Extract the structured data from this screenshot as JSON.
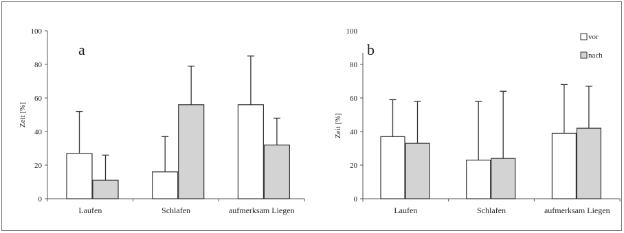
{
  "chart_data": [
    {
      "type": "bar",
      "panel_label": "a",
      "categories": [
        "Laufen",
        "Schlafen",
        "aufmerksam Liegen"
      ],
      "series": [
        {
          "name": "vor",
          "values": [
            27,
            16,
            56
          ],
          "error": [
            25,
            21,
            29
          ],
          "color": "#ffffff"
        },
        {
          "name": "nach",
          "values": [
            11,
            56,
            32
          ],
          "error": [
            15,
            23,
            16
          ],
          "color": "#d3d3d3"
        }
      ],
      "ylabel": "Zeit [%]",
      "ylim": [
        0,
        100
      ],
      "yticks": [
        0,
        20,
        40,
        60,
        80,
        100
      ],
      "grid": false,
      "legend": false
    },
    {
      "type": "bar",
      "panel_label": "b",
      "categories": [
        "Laufen",
        "Schlafen",
        "aufmerksam Liegen"
      ],
      "series": [
        {
          "name": "vor",
          "values": [
            37,
            23,
            39
          ],
          "error": [
            22,
            35,
            29
          ],
          "color": "#ffffff"
        },
        {
          "name": "nach",
          "values": [
            33,
            24,
            42
          ],
          "error": [
            25,
            40,
            25
          ],
          "color": "#d3d3d3"
        }
      ],
      "ylabel": "Zeit [%]",
      "ylim": [
        0,
        80
      ],
      "yticks": [
        0,
        20,
        40,
        60,
        80,
        100
      ],
      "grid": false,
      "legend": "top-right"
    }
  ]
}
